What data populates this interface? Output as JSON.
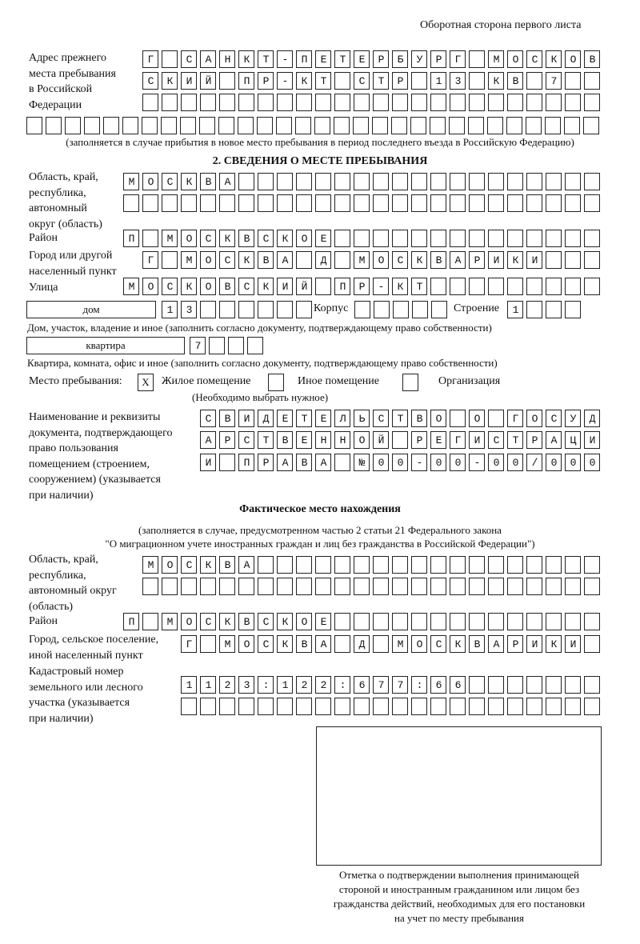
{
  "header": "Оборотная сторона первого листа",
  "previous_address": {
    "label": "Адрес прежнего\nместа пребывания\nв Российской\nФедерации",
    "rows": [
      "Г САНКТ-ПЕТЕРБУРГ МОСКОВ",
      "СКИЙ ПР-КТ СТР 13 КВ 7  ",
      "                        ",
      "                              "
    ],
    "note": "(заполняется в случае прибытия в новое место пребывания в период последнего въезда в Российскую Федерацию)"
  },
  "section2": {
    "title": "2. СВЕДЕНИЯ О МЕСТЕ ПРЕБЫВАНИЯ",
    "region_label": "Область, край,\nреспублика,\nавтономный\nокруг (область)",
    "region_rows": [
      "МОСКВА                   ",
      "                         "
    ],
    "district_label": "Район",
    "district_row": "П МОСКВСКОЕ              ",
    "city_label": "Город или другой\nнаселенный пункт",
    "city_row": "Г МОСКВА Д МОСКВАРИКИ   ",
    "street_label": "Улица",
    "street_row": "МОСКОВСКИЙ ПР-КТ         ",
    "house_type": "дом",
    "house_number": "13      ",
    "korpus_label": "Корпус",
    "korpus": "     ",
    "building_label": "Строение",
    "building": "1   ",
    "house_note": "Дом, участок, владение и иное (заполнить согласно документу, подтверждающему право собственности)",
    "apt_type": "квартира",
    "apt_number": "7   ",
    "apt_note": "Квартира, комната, офис и иное (заполнить согласно документу, подтверждающему право собственности)",
    "stay_label": "Место пребывания:",
    "stay_options": [
      {
        "mark": "X",
        "label": "Жилое помещение",
        "checked": true
      },
      {
        "mark": "",
        "label": "Иное помещение",
        "checked": false
      },
      {
        "mark": "",
        "label": "Организация",
        "checked": false
      }
    ],
    "stay_hint": "(Необходимо выбрать нужное)",
    "doc_label": "Наименование и реквизиты\nдокумента, подтверждающего\nправо пользования\nпомещением (строением,\nсооружением) (указывается\nпри наличии)",
    "doc_rows": [
      "СВИДЕТЕЛЬСТВО О ГОСУД",
      "АРСТВЕННОЙ РЕГИСТРАЦИ",
      "И ПРАВА №00-00-00/000"
    ]
  },
  "actual": {
    "title": "Фактическое место нахождения",
    "note1": "(заполняется в случае, предусмотренном частью 2 статьи 21 Федерального закона",
    "note2": "\"О миграционном учете иностранных граждан и лиц без гражданства в Российской Федерации\")",
    "region_label": "Область, край,\nреспублика,\nавтономный округ\n(область)",
    "region_rows": [
      "МОСКВА                  ",
      "                        "
    ],
    "district_label": "Район",
    "district_row": "П МОСКВСКОЕ              ",
    "city_label": "Город, сельское поселение,\nиной населенный пункт",
    "city_row": "Г МОСКВА Д МОСКВАРИКИ ",
    "cadastre_label": "Кадастровый номер\nземельного или лесного\nучастка (указывается\nпри наличии)",
    "cadastre_rows": [
      "1123:122:677:66       ",
      "                      "
    ]
  },
  "confirmation_note": "Отметка о подтверждении выполнения принимающей\nстороной и иностранным гражданином или лицом без\nгражданства действий, необходимых для его постановки\nна учет по месту пребывания"
}
